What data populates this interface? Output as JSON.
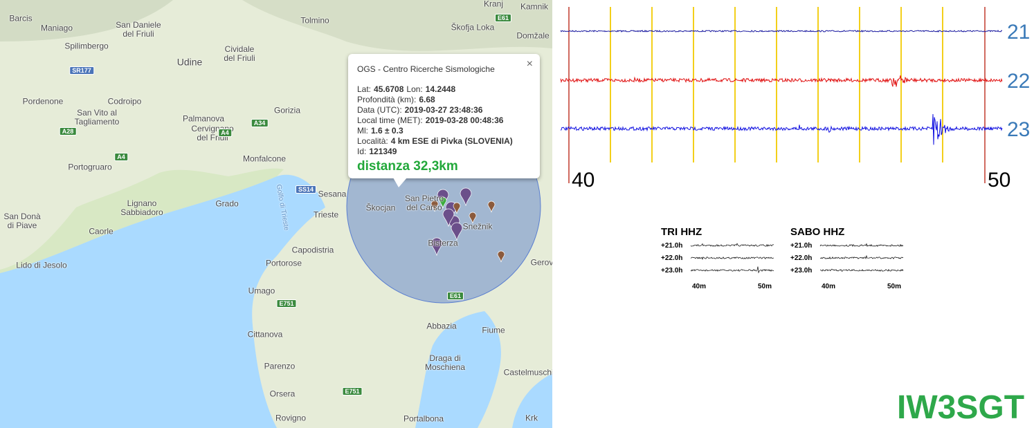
{
  "map": {
    "labels": [
      "Barcis",
      "Maniago",
      "San Daniele\ndel Friuli",
      "Spilimbergo",
      "Udine",
      "Cividale\ndel Friuli",
      "Tolmino",
      "Kranj",
      "Kamnik",
      "Škofja Loka",
      "Domžale",
      "Pordenone",
      "Codroipo",
      "San Vito al\nTagliamento",
      "Palmanova",
      "Gorizia",
      "Cervignano\ndel Friuli",
      "Monfalcone",
      "Portogruaro",
      "Sesana",
      "Trieste",
      "Grado",
      "Lignano\nSabbiadoro",
      "San Donà\ndi Piave",
      "Caorle",
      "Lido di Jesolo",
      "Capodistria",
      "Portorose",
      "Umago",
      "Cittanova",
      "Parenzo",
      "Orsera",
      "Rovigno",
      "Fiume",
      "Abbazia",
      "Draga di\nMoschiena",
      "Castelmuschio",
      "Portalbona",
      "Krk",
      "Škocjan",
      "Snežnik",
      "Bisterza",
      "Gerov",
      "San Pietro\ndel Carso"
    ],
    "roads": [
      "E61",
      "SR177",
      "A28",
      "A4",
      "A34",
      "A4",
      "SS14",
      "E751",
      "E751",
      "E61"
    ],
    "gulf": "Golfo di Trieste"
  },
  "popup": {
    "source": "OGS - Centro Ricerche Sismologiche",
    "close": "×",
    "fields": [
      {
        "label": "Lat:",
        "value": "45.6708"
      },
      {
        "label": "Lon:",
        "value": "14.2448"
      },
      {
        "label": "Profondità (km):",
        "value": "6.68"
      },
      {
        "label": "Data (UTC):",
        "value": "2019-03-27 23:48:36"
      },
      {
        "label": "Local time (MET):",
        "value": "2019-03-28 00:48:36"
      },
      {
        "label": "Ml:",
        "value": "1.6 ± 0.3"
      },
      {
        "label": "Località:",
        "value": "4 km ESE di Pivka (SLOVENIA)"
      },
      {
        "label": "Id:",
        "value": "121349"
      }
    ],
    "distance": "distanza 32,3km"
  },
  "seismogram": {
    "traces": [
      "21",
      "22",
      "23"
    ],
    "time_labels": [
      "40",
      "50"
    ]
  },
  "helicorders": [
    {
      "title": "TRI HHZ",
      "rows": [
        "+21.0h",
        "+22.0h",
        "+23.0h"
      ],
      "ticks": [
        "40m",
        "50m"
      ]
    },
    {
      "title": "SABO HHZ",
      "rows": [
        "+21.0h",
        "+22.0h",
        "+23.0h"
      ],
      "ticks": [
        "40m",
        "50m"
      ]
    }
  ],
  "callsign": "IW3SGT"
}
